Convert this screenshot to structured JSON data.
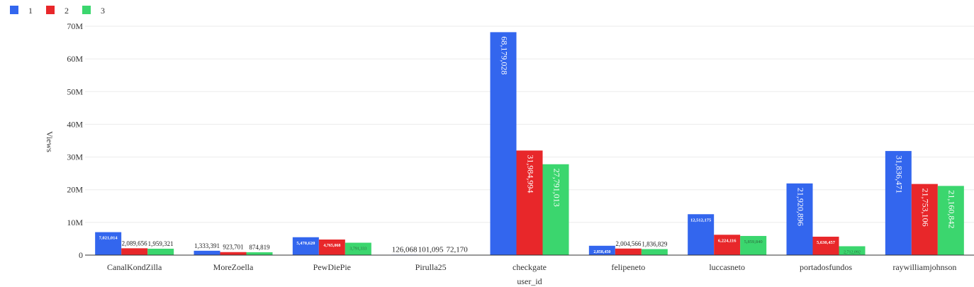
{
  "chart_data": {
    "type": "bar",
    "xlabel": "user_id",
    "ylabel": "Views",
    "ylim": [
      0,
      70000000
    ],
    "yticks": [
      0,
      10000000,
      20000000,
      30000000,
      40000000,
      50000000,
      60000000,
      70000000
    ],
    "ytick_labels": [
      "0",
      "10M",
      "20M",
      "30M",
      "40M",
      "50M",
      "60M",
      "70M"
    ],
    "grid": true,
    "legend_position": "top-left",
    "categories": [
      "CanalKondZilla",
      "MoreZoella",
      "PewDiePie",
      "Pirulla25",
      "checkgate",
      "felipeneto",
      "luccasneto",
      "portadosfundos",
      "raywilliamjohnson"
    ],
    "series": [
      {
        "name": "1",
        "color": "#3366ee",
        "values": [
          7021014,
          1333391,
          5470620,
          126068,
          68179028,
          2858450,
          12512175,
          21920896,
          31836471
        ],
        "labels": [
          "7,021,014",
          "1,333,391",
          "5,470,620",
          "126,068",
          "68,179,028",
          "2,858,450",
          "12,512,175",
          "21,920,896",
          "31,836,471"
        ]
      },
      {
        "name": "2",
        "color": "#e8272a",
        "values": [
          2089656,
          923701,
          4765068,
          101095,
          31984994,
          2004566,
          6224116,
          5630457,
          21753106
        ],
        "labels": [
          "2,089,656",
          "923,701",
          "4,765,068",
          "101,095",
          "31,984,994",
          "2,004,566",
          "6,224,116",
          "5,630,457",
          "21,753,106"
        ]
      },
      {
        "name": "3",
        "color": "#3bd66e",
        "values": [
          1959321,
          874819,
          3791333,
          72170,
          27791013,
          1836829,
          5859840,
          2712092,
          21160842
        ],
        "labels": [
          "1,959,321",
          "874,819",
          "3,791,333",
          "72,170",
          "27,791,013",
          "1,836,829",
          "5,859,840",
          "2,712,092",
          "21,160,842"
        ]
      }
    ]
  }
}
